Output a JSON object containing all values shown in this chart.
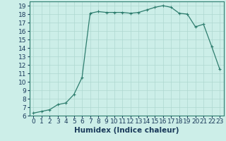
{
  "x": [
    0,
    1,
    2,
    3,
    4,
    5,
    6,
    7,
    8,
    9,
    10,
    11,
    12,
    13,
    14,
    15,
    16,
    17,
    18,
    19,
    20,
    21,
    22,
    23
  ],
  "y": [
    6.3,
    6.5,
    6.7,
    7.3,
    7.5,
    8.5,
    10.5,
    18.1,
    18.3,
    18.2,
    18.2,
    18.2,
    18.1,
    18.2,
    18.5,
    18.8,
    19.0,
    18.8,
    18.1,
    18.0,
    16.5,
    16.8,
    14.2,
    11.5
  ],
  "line_color": "#2e7d6e",
  "marker": "+",
  "marker_size": 3,
  "marker_linewidth": 0.8,
  "bg_color": "#cceee8",
  "grid_color": "#aed8d0",
  "xlabel": "Humidex (Indice chaleur)",
  "xlim": [
    -0.5,
    23.5
  ],
  "ylim": [
    6,
    19.5
  ],
  "yticks": [
    6,
    7,
    8,
    9,
    10,
    11,
    12,
    13,
    14,
    15,
    16,
    17,
    18,
    19
  ],
  "xticks": [
    0,
    1,
    2,
    3,
    4,
    5,
    6,
    7,
    8,
    9,
    10,
    11,
    12,
    13,
    14,
    15,
    16,
    17,
    18,
    19,
    20,
    21,
    22,
    23
  ],
  "tick_label_fontsize": 6.5,
  "xlabel_fontsize": 7.5,
  "line_width": 0.9
}
